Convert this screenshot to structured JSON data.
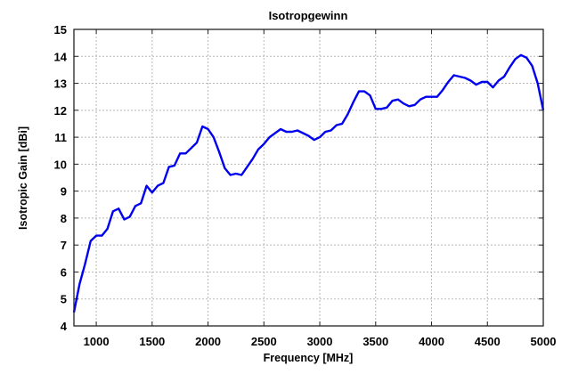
{
  "chart_data": {
    "type": "line",
    "title": "Isotropgewinn",
    "xlabel": "Frequency [MHz]",
    "ylabel": "Isotropic Gain [dBi]",
    "xlim": [
      800,
      5000
    ],
    "ylim": [
      4,
      15
    ],
    "xticks": [
      1000,
      1500,
      2000,
      2500,
      3000,
      3500,
      4000,
      4500,
      5000
    ],
    "yticks": [
      4,
      5,
      6,
      7,
      8,
      9,
      10,
      11,
      12,
      13,
      14,
      15
    ],
    "grid": true,
    "legend": null,
    "series": [
      {
        "name": "Isotropic Gain",
        "color": "#0000ee",
        "x": [
          800,
          850,
          900,
          950,
          1000,
          1050,
          1100,
          1150,
          1200,
          1250,
          1300,
          1350,
          1400,
          1450,
          1500,
          1550,
          1600,
          1650,
          1700,
          1750,
          1800,
          1850,
          1900,
          1950,
          2000,
          2050,
          2100,
          2150,
          2200,
          2250,
          2300,
          2350,
          2400,
          2450,
          2500,
          2550,
          2600,
          2650,
          2700,
          2750,
          2800,
          2850,
          2900,
          2950,
          3000,
          3050,
          3100,
          3150,
          3200,
          3250,
          3300,
          3350,
          3400,
          3450,
          3500,
          3550,
          3600,
          3650,
          3700,
          3750,
          3800,
          3850,
          3900,
          3950,
          4000,
          4050,
          4100,
          4150,
          4200,
          4250,
          4300,
          4350,
          4400,
          4450,
          4500,
          4550,
          4600,
          4650,
          4700,
          4750,
          4800,
          4850,
          4900,
          4950,
          5000
        ],
        "values": [
          4.5,
          5.55,
          6.3,
          7.15,
          7.35,
          7.35,
          7.6,
          8.25,
          8.35,
          7.95,
          8.05,
          8.45,
          8.55,
          9.2,
          8.95,
          9.2,
          9.3,
          9.9,
          9.95,
          10.4,
          10.4,
          10.6,
          10.8,
          11.4,
          11.3,
          11.0,
          10.45,
          9.85,
          9.6,
          9.65,
          9.6,
          9.9,
          10.2,
          10.55,
          10.75,
          11.0,
          11.15,
          11.3,
          11.2,
          11.2,
          11.25,
          11.15,
          11.05,
          10.9,
          11.0,
          11.2,
          11.25,
          11.45,
          11.5,
          11.85,
          12.3,
          12.7,
          12.7,
          12.55,
          12.05,
          12.05,
          12.1,
          12.35,
          12.4,
          12.25,
          12.15,
          12.2,
          12.4,
          12.5,
          12.5,
          12.5,
          12.75,
          13.05,
          13.3,
          13.25,
          13.2,
          13.1,
          12.95,
          13.05,
          13.05,
          12.85,
          13.1,
          13.25,
          13.6,
          13.9,
          14.05,
          13.95,
          13.65,
          13.0,
          12.0
        ]
      }
    ]
  }
}
